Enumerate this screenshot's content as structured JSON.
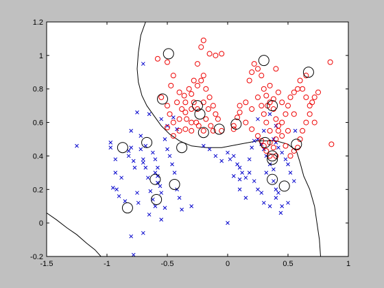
{
  "colors": {
    "figure_bg": "#c0c0c0",
    "axes_bg": "#ffffff",
    "class_a": "#0000cc",
    "class_b": "#ee0000",
    "support_vector": "#000000",
    "boundary": "#000000"
  },
  "chart_data": {
    "type": "scatter",
    "title": "",
    "xlabel": "",
    "ylabel": "",
    "xlim": [
      -1.5,
      1
    ],
    "ylim": [
      -0.2,
      1.2
    ],
    "xticks": [
      -1.5,
      -1,
      -0.5,
      0,
      0.5,
      1
    ],
    "xtick_labels": [
      "-1.5",
      "-1",
      "-0.5",
      "0",
      "0.5",
      "1"
    ],
    "yticks": [
      -0.2,
      0,
      0.2,
      0.4,
      0.6,
      0.8,
      1,
      1.2
    ],
    "ytick_labels": [
      "-0.2",
      "0",
      "0.2",
      "0.4",
      "0.6",
      "0.8",
      "1",
      "1.2"
    ],
    "grid": false,
    "series": [
      {
        "marker": "x",
        "color": "#0000cc",
        "points": [
          [
            -1.25,
            0.46
          ],
          [
            -0.97,
            0.48
          ],
          [
            -0.97,
            0.45
          ],
          [
            -0.93,
            0.38
          ],
          [
            -0.93,
            0.3
          ],
          [
            -0.88,
            0.27
          ],
          [
            -0.92,
            0.2
          ],
          [
            -0.95,
            0.21
          ],
          [
            -0.9,
            0.16
          ],
          [
            -0.85,
            0.13
          ],
          [
            -0.82,
            0.43
          ],
          [
            -0.82,
            0.4
          ],
          [
            -0.8,
            0.55
          ],
          [
            -0.8,
            0.45
          ],
          [
            -0.78,
            0.37
          ],
          [
            -0.77,
            0.33
          ],
          [
            -0.75,
            0.18
          ],
          [
            -0.74,
            0.12
          ],
          [
            -0.72,
            0.44
          ],
          [
            -0.7,
            0.38
          ],
          [
            -0.7,
            0.36
          ],
          [
            -0.68,
            0.33
          ],
          [
            -0.66,
            0.27
          ],
          [
            -0.64,
            0.19
          ],
          [
            -0.62,
            0.14
          ],
          [
            -0.6,
            0.1
          ],
          [
            -0.6,
            0.3
          ],
          [
            -0.58,
            0.33
          ],
          [
            -0.58,
            0.28
          ],
          [
            -0.56,
            0.22
          ],
          [
            -0.55,
            0.18
          ],
          [
            -0.52,
            0.09
          ],
          [
            -0.5,
            0.44
          ],
          [
            -0.48,
            0.4
          ],
          [
            -0.46,
            0.35
          ],
          [
            -0.44,
            0.3
          ],
          [
            -0.42,
            0.2
          ],
          [
            -0.4,
            0.15
          ],
          [
            -0.38,
            0.08
          ],
          [
            -0.75,
            0.66
          ],
          [
            -0.65,
            0.65
          ],
          [
            -0.72,
            0.52
          ],
          [
            -0.68,
            0.46
          ],
          [
            -0.62,
            0.42
          ],
          [
            -0.7,
            0.95
          ],
          [
            -0.55,
            0.62
          ],
          [
            -0.5,
            0.58
          ],
          [
            -0.52,
            0.5
          ],
          [
            -0.45,
            0.63
          ],
          [
            -0.42,
            0.56
          ],
          [
            -0.6,
            0.38
          ],
          [
            -0.58,
            0.24
          ],
          [
            -0.65,
            0.05
          ],
          [
            -0.55,
            0.02
          ],
          [
            -0.8,
            -0.08
          ],
          [
            -0.7,
            -0.06
          ],
          [
            -0.78,
            -0.19
          ],
          [
            -0.2,
            0.46
          ],
          [
            -0.15,
            0.44
          ],
          [
            -0.1,
            0.4
          ],
          [
            -0.05,
            0.37
          ],
          [
            0.0,
            0.42
          ],
          [
            0.02,
            0.38
          ],
          [
            0.05,
            0.4
          ],
          [
            0.08,
            0.35
          ],
          [
            0.1,
            0.33
          ],
          [
            0.12,
            0.3
          ],
          [
            0.15,
            0.27
          ],
          [
            0.18,
            0.38
          ],
          [
            0.2,
            0.45
          ],
          [
            0.22,
            0.49
          ],
          [
            0.25,
            0.5
          ],
          [
            0.28,
            0.47
          ],
          [
            0.3,
            0.44
          ],
          [
            0.32,
            0.4
          ],
          [
            0.35,
            0.35
          ],
          [
            0.38,
            0.32
          ],
          [
            0.4,
            0.48
          ],
          [
            0.42,
            0.45
          ],
          [
            0.45,
            0.42
          ],
          [
            0.48,
            0.38
          ],
          [
            0.5,
            0.35
          ],
          [
            0.52,
            0.3
          ],
          [
            0.55,
            0.25
          ],
          [
            0.38,
            0.25
          ],
          [
            0.4,
            0.2
          ],
          [
            0.42,
            0.18
          ],
          [
            0.3,
            0.12
          ],
          [
            0.35,
            0.1
          ],
          [
            0.4,
            0.15
          ],
          [
            0.45,
            0.1
          ],
          [
            0.5,
            0.12
          ],
          [
            0.25,
            0.2
          ],
          [
            0.22,
            0.25
          ],
          [
            0.18,
            0.3
          ],
          [
            0.15,
            0.15
          ],
          [
            0.1,
            0.2
          ],
          [
            0.05,
            0.28
          ],
          [
            0.0,
            0.0
          ],
          [
            -0.3,
            0.1
          ],
          [
            0.25,
            0.62
          ],
          [
            0.3,
            0.55
          ],
          [
            0.35,
            0.65
          ],
          [
            0.4,
            0.58
          ],
          [
            0.38,
            0.5
          ],
          [
            0.1,
            0.26
          ],
          [
            0.28,
            0.18
          ],
          [
            0.32,
            0.3
          ],
          [
            0.44,
            0.06
          ],
          [
            0.56,
            0.55
          ]
        ]
      },
      {
        "marker": "o",
        "color": "#ee0000",
        "points": [
          [
            -0.58,
            0.98
          ],
          [
            -0.5,
            0.96
          ],
          [
            -0.45,
            0.88
          ],
          [
            -0.47,
            0.82
          ],
          [
            -0.4,
            0.78
          ],
          [
            -0.35,
            0.72
          ],
          [
            -0.3,
            0.77
          ],
          [
            -0.25,
            0.82
          ],
          [
            -0.22,
            0.85
          ],
          [
            -0.2,
            0.88
          ],
          [
            -0.18,
            0.8
          ],
          [
            -0.15,
            0.75
          ],
          [
            -0.12,
            0.7
          ],
          [
            -0.1,
            0.65
          ],
          [
            -0.08,
            0.62
          ],
          [
            -0.25,
            0.95
          ],
          [
            -0.22,
            1.05
          ],
          [
            -0.2,
            1.09
          ],
          [
            -0.15,
            1.01
          ],
          [
            -0.1,
            1.0
          ],
          [
            -0.05,
            1.01
          ],
          [
            -0.55,
            0.75
          ],
          [
            -0.5,
            0.7
          ],
          [
            -0.48,
            0.65
          ],
          [
            -0.45,
            0.6
          ],
          [
            -0.4,
            0.62
          ],
          [
            -0.35,
            0.66
          ],
          [
            -0.3,
            0.68
          ],
          [
            -0.28,
            0.72
          ],
          [
            -0.26,
            0.6
          ],
          [
            -0.24,
            0.58
          ],
          [
            -0.2,
            0.55
          ],
          [
            -0.18,
            0.62
          ],
          [
            -0.16,
            0.68
          ],
          [
            -0.14,
            0.58
          ],
          [
            -0.12,
            0.55
          ],
          [
            -0.2,
            0.72
          ],
          [
            -0.25,
            0.68
          ],
          [
            -0.3,
            0.6
          ],
          [
            -0.35,
            0.56
          ],
          [
            -0.4,
            0.55
          ],
          [
            -0.45,
            0.52
          ],
          [
            -0.5,
            0.57
          ],
          [
            -0.28,
            0.85
          ],
          [
            -0.32,
            0.8
          ],
          [
            -0.36,
            0.76
          ],
          [
            -0.42,
            0.72
          ],
          [
            -0.38,
            0.68
          ],
          [
            -0.34,
            0.62
          ],
          [
            -0.3,
            0.55
          ],
          [
            0.05,
            0.58
          ],
          [
            0.08,
            0.63
          ],
          [
            0.1,
            0.66
          ],
          [
            0.15,
            0.6
          ],
          [
            0.2,
            0.56
          ],
          [
            0.25,
            0.52
          ],
          [
            0.28,
            0.49
          ],
          [
            0.3,
            0.46
          ],
          [
            0.32,
            0.43
          ],
          [
            0.35,
            0.4
          ],
          [
            0.38,
            0.45
          ],
          [
            0.4,
            0.5
          ],
          [
            0.42,
            0.55
          ],
          [
            0.45,
            0.6
          ],
          [
            0.48,
            0.65
          ],
          [
            0.5,
            0.7
          ],
          [
            0.52,
            0.75
          ],
          [
            0.55,
            0.78
          ],
          [
            0.58,
            0.8
          ],
          [
            0.6,
            0.85
          ],
          [
            0.62,
            0.8
          ],
          [
            0.65,
            0.75
          ],
          [
            0.68,
            0.7
          ],
          [
            0.7,
            0.72
          ],
          [
            0.72,
            0.75
          ],
          [
            0.68,
            0.65
          ],
          [
            0.65,
            0.6
          ],
          [
            0.62,
            0.55
          ],
          [
            0.6,
            0.5
          ],
          [
            0.58,
            0.45
          ],
          [
            0.55,
            0.43
          ],
          [
            0.52,
            0.4
          ],
          [
            0.48,
            0.46
          ],
          [
            0.45,
            0.52
          ],
          [
            0.42,
            0.58
          ],
          [
            0.4,
            0.62
          ],
          [
            0.38,
            0.68
          ],
          [
            0.35,
            0.72
          ],
          [
            0.32,
            0.76
          ],
          [
            0.3,
            0.8
          ],
          [
            0.28,
            0.88
          ],
          [
            0.25,
            0.92
          ],
          [
            0.22,
            0.95
          ],
          [
            0.2,
            0.9
          ],
          [
            0.18,
            0.85
          ],
          [
            0.25,
            0.75
          ],
          [
            0.28,
            0.7
          ],
          [
            0.3,
            0.65
          ],
          [
            0.32,
            0.6
          ],
          [
            0.35,
            0.55
          ],
          [
            0.85,
            0.96
          ],
          [
            0.86,
            0.47
          ],
          [
            0.75,
            0.78
          ],
          [
            0.72,
            0.6
          ],
          [
            0.65,
            0.88
          ],
          [
            0.4,
            0.92
          ],
          [
            0.55,
            0.65
          ],
          [
            0.5,
            0.55
          ],
          [
            0.45,
            0.72
          ],
          [
            0.42,
            0.78
          ],
          [
            0.38,
            0.74
          ],
          [
            0.35,
            0.82
          ],
          [
            0.33,
            0.7
          ],
          [
            0.2,
            0.68
          ],
          [
            0.15,
            0.72
          ],
          [
            0.1,
            0.7
          ],
          [
            0.35,
            0.48
          ],
          [
            0.4,
            0.4
          ],
          [
            0.05,
            0.56
          ],
          [
            -0.05,
            0.55
          ]
        ]
      }
    ],
    "support_vectors": [
      [
        -0.49,
        1.01
      ],
      [
        0.3,
        0.97
      ],
      [
        0.67,
        0.9
      ],
      [
        -0.54,
        0.74
      ],
      [
        -0.25,
        0.7
      ],
      [
        -0.23,
        0.65
      ],
      [
        0.37,
        0.7
      ],
      [
        -0.2,
        0.54
      ],
      [
        -0.07,
        0.56
      ],
      [
        0.07,
        0.59
      ],
      [
        0.31,
        0.48
      ],
      [
        0.57,
        0.47
      ],
      [
        -0.38,
        0.45
      ],
      [
        -0.67,
        0.48
      ],
      [
        -0.87,
        0.45
      ],
      [
        0.37,
        0.38
      ],
      [
        0.37,
        0.4
      ],
      [
        -0.6,
        0.26
      ],
      [
        0.37,
        0.26
      ],
      [
        -0.44,
        0.23
      ],
      [
        0.47,
        0.22
      ],
      [
        -0.59,
        0.14
      ],
      [
        -0.83,
        0.09
      ]
    ],
    "boundary_curves": [
      [
        [
          -0.68,
          1.2
        ],
        [
          -0.72,
          1.12
        ],
        [
          -0.74,
          1.02
        ],
        [
          -0.75,
          0.92
        ],
        [
          -0.74,
          0.84
        ],
        [
          -0.71,
          0.76
        ],
        [
          -0.67,
          0.7
        ],
        [
          -0.61,
          0.64
        ],
        [
          -0.55,
          0.58
        ],
        [
          -0.48,
          0.53
        ],
        [
          -0.4,
          0.49
        ],
        [
          -0.3,
          0.46
        ],
        [
          -0.18,
          0.45
        ],
        [
          -0.05,
          0.45
        ],
        [
          0.1,
          0.47
        ],
        [
          0.25,
          0.49
        ],
        [
          0.4,
          0.49
        ],
        [
          0.5,
          0.47
        ],
        [
          0.57,
          0.43
        ],
        [
          0.6,
          0.36
        ],
        [
          0.63,
          0.28
        ],
        [
          0.68,
          0.2
        ],
        [
          0.72,
          0.1
        ],
        [
          0.74,
          0.0
        ],
        [
          0.76,
          -0.1
        ],
        [
          0.77,
          -0.2
        ]
      ],
      [
        [
          -1.5,
          0.06
        ],
        [
          -1.42,
          0.02
        ],
        [
          -1.33,
          -0.03
        ],
        [
          -1.25,
          -0.07
        ],
        [
          -1.17,
          -0.12
        ],
        [
          -1.1,
          -0.16
        ],
        [
          -1.05,
          -0.2
        ]
      ]
    ]
  }
}
